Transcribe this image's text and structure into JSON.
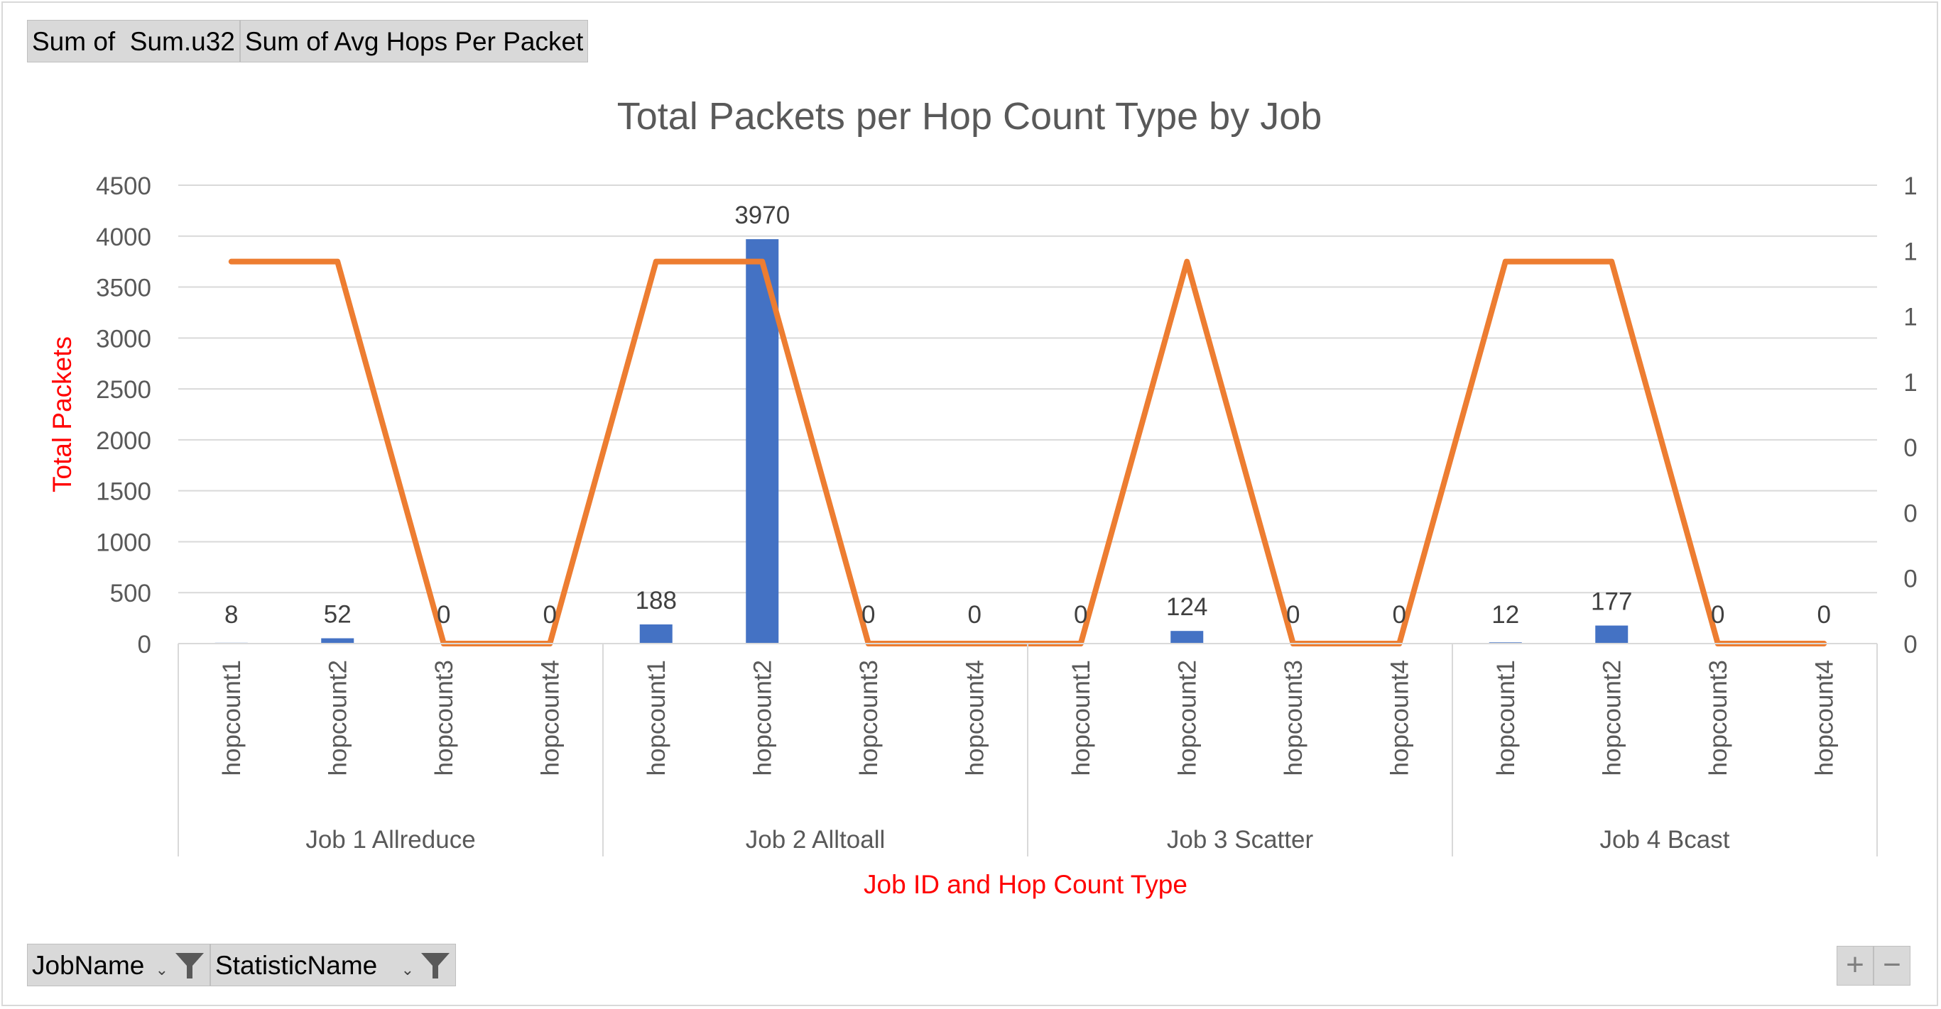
{
  "pivot_buttons": [
    "Sum of  Sum.u32",
    "Sum of Avg Hops Per Packet"
  ],
  "filter_buttons": [
    {
      "label": "JobName",
      "icon": "filter-icon"
    },
    {
      "label": "StatisticName",
      "icon": "filter-icon"
    }
  ],
  "zoom_controls": {
    "plus": "+",
    "minus": "−"
  },
  "colors": {
    "bars": "#4472c4",
    "line": "#ed7d31",
    "axis_title": "#ff0000",
    "title": "#595959",
    "grid": "#d9d9d9"
  },
  "chart_data": {
    "type": "bar",
    "title": "Total Packets per Hop Count Type by Job",
    "xlabel": "Job ID and Hop Count Type",
    "ylabel": "Total Packets",
    "ylim": [
      0,
      4500
    ],
    "yticks": [
      "0",
      "500",
      "1000",
      "1500",
      "2000",
      "2500",
      "3000",
      "3500",
      "4000",
      "4500"
    ],
    "y2ticks": [
      "0",
      "0",
      "0",
      "0",
      "1",
      "1",
      "1",
      "1"
    ],
    "grid": true,
    "groups": [
      "Job 1 Allreduce",
      "Job 2 Alltoall",
      "Job 3 Scatter",
      "Job 4 Bcast"
    ],
    "categories": [
      "hopcount1",
      "hopcount2",
      "hopcount3",
      "hopcount4",
      "hopcount1",
      "hopcount2",
      "hopcount3",
      "hopcount4",
      "hopcount1",
      "hopcount2",
      "hopcount3",
      "hopcount4",
      "hopcount1",
      "hopcount2",
      "hopcount3",
      "hopcount4"
    ],
    "series": [
      {
        "type": "bar",
        "values": [
          8,
          52,
          0,
          0,
          188,
          3970,
          0,
          0,
          0,
          124,
          0,
          0,
          12,
          177,
          0,
          0
        ]
      },
      {
        "type": "line",
        "axis": "secondary",
        "y2lim": [
          0,
          1.2
        ],
        "values": [
          1,
          1,
          0,
          0,
          1,
          1,
          0,
          0,
          0,
          1,
          0,
          0,
          1,
          1,
          0,
          0
        ]
      }
    ],
    "data_labels": [
      "8",
      "52",
      "0",
      "0",
      "188",
      "3970",
      "0",
      "0",
      "0",
      "124",
      "0",
      "0",
      "12",
      "177",
      "0",
      "0"
    ]
  }
}
